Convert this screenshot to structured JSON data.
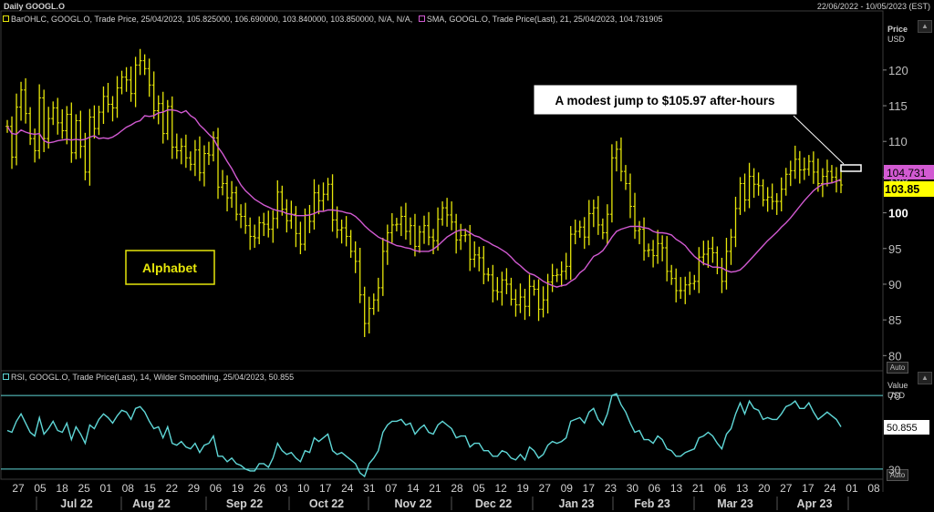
{
  "window": {
    "title": "Daily GOOGL.O",
    "date_range": "22/06/2022 - 10/05/2023 (EST)"
  },
  "price_pane": {
    "legend_ohlc": "BarOHLC, GOOGL.O, Trade Price, 25/04/2023, 105.825000, 106.690000, 103.840000, 103.850000, N/A, N/A,",
    "legend_sma": "SMA, GOOGL.O, Trade Price(Last),  21, 25/04/2023, 104.731905",
    "axis_label": "Price",
    "axis_unit": "USD",
    "auto_label": "Auto",
    "sma_tag": "104.731",
    "last_price_tag": "103.85",
    "annotation": "A modest jump to $105.97 after-hours",
    "company_label": "Alphabet"
  },
  "rsi_pane": {
    "legend": "RSI, GOOGL.O, Trade Price(Last),  14, Wilder Smoothing, 25/04/2023, 50.855",
    "axis_label": "Value",
    "axis_unit": "USD",
    "auto_label": "Auto",
    "value_tag": "50.855"
  },
  "colors": {
    "background": "#000000",
    "bars": "#e6e60a",
    "sma": "#d25ad2",
    "rsi": "#5fd7d7",
    "grid": "#2a2a2a"
  },
  "chart_data": [
    {
      "type": "line",
      "title": "Daily GOOGL.O",
      "ylabel": "Price",
      "yunit": "USD",
      "ylim": [
        78,
        127
      ],
      "ytick_labels": [
        80,
        85,
        90,
        95,
        100,
        105,
        110,
        115,
        120
      ],
      "x_day_ticks": [
        "27",
        "05",
        "18",
        "25",
        "01",
        "08",
        "15",
        "22",
        "29",
        "06",
        "19",
        "26",
        "03",
        "10",
        "17",
        "24",
        "31",
        "07",
        "14",
        "21",
        "28",
        "05",
        "12",
        "19",
        "27",
        "09",
        "17",
        "23",
        "30",
        "06",
        "13",
        "21",
        "06",
        "13",
        "20",
        "27",
        "17",
        "24",
        "01",
        "08"
      ],
      "x_month_labels": [
        "Jul 22",
        "Aug 22",
        "Sep 22",
        "Oct 22",
        "Nov 22",
        "Dec 22",
        "Jan 23",
        "Feb 23",
        "Mar 23",
        "Apr 23"
      ],
      "grid": false,
      "series": [
        {
          "name": "BarOHLC",
          "style": "ohlc",
          "close": [
            112.1,
            107.8,
            114.8,
            117.2,
            113.9,
            110.4,
            108.7,
            116.1,
            110.4,
            113.2,
            114.7,
            112.6,
            111.5,
            113.8,
            108.4,
            112.9,
            109.3,
            105.7,
            113.4,
            111.8,
            114.1,
            116.3,
            115.2,
            114.7,
            117.5,
            119.0,
            118.6,
            116.7,
            120.7,
            121.3,
            120.2,
            117.9,
            114.3,
            115.3,
            111.1,
            114.9,
            109.2,
            108.7,
            109.3,
            107.7,
            106.8,
            108.8,
            105.6,
            108.3,
            108.1,
            110.5,
            103.6,
            104.1,
            102.1,
            102.8,
            99.8,
            99.5,
            98.2,
            96.7,
            96.5,
            98.6,
            98.4,
            97.7,
            99.2,
            102.9,
            100.5,
            98.9,
            99.8,
            97.1,
            95.6,
            99.7,
            98.8,
            102.8,
            101.7,
            102.6,
            104.0,
            99.0,
            97.6,
            97.9,
            96.7,
            94.6,
            93.2,
            88.5,
            84.5,
            86.6,
            87.8,
            89.5,
            94.6,
            97.2,
            98.3,
            98.4,
            99.5,
            97.4,
            98.2,
            95.3,
            97.3,
            98.2,
            96.6,
            96.1,
            99.1,
            100.7,
            99.7,
            98.7,
            96.2,
            96.8,
            96.9,
            93.5,
            94.1,
            93.7,
            91.4,
            91.3,
            89.1,
            88.9,
            90.6,
            90.0,
            87.9,
            87.1,
            88.2,
            86.9,
            89.7,
            89.3,
            86.5,
            87.8,
            90.3,
            91.2,
            91.3,
            91.8,
            92.5,
            97.0,
            97.4,
            98.0,
            96.6,
            99.9,
            100.7,
            98.3,
            97.2,
            99.8,
            107.7,
            108.9,
            105.8,
            104.1,
            100.9,
            97.5,
            97.7,
            94.7,
            94.8,
            94.0,
            95.7,
            95.1,
            91.8,
            90.8,
            89.1,
            89.1,
            89.9,
            90.1,
            90.4,
            93.8,
            94.2,
            95.0,
            94.4,
            92.3,
            90.4,
            94.6,
            96.6,
            100.6,
            104.1,
            101.8,
            105.1,
            104.0,
            103.8,
            101.8,
            102.2,
            101.6,
            101.6,
            103.3,
            105.4,
            105.9,
            107.5,
            106.0,
            106.1,
            107.2,
            105.7,
            104.1,
            105.1,
            105.8,
            105.0,
            104.5,
            103.9
          ]
        },
        {
          "name": "SMA",
          "values": [
            112.1,
            111.1,
            111.0,
            111.6,
            111.3,
            111.1,
            111.0,
            111.1,
            110.1,
            109.8,
            109.9,
            110.1,
            110.2,
            110.3,
            110.2,
            110.3,
            110.2,
            110.3,
            110.6,
            110.8,
            110.4,
            110.5,
            110.4,
            110.6,
            111.0,
            111.5,
            112.0,
            112.3,
            112.7,
            112.9,
            113.6,
            113.5,
            113.6,
            114.0,
            114.1,
            114.4,
            114.4,
            114.3,
            114.0,
            114.3,
            113.6,
            113.2,
            112.3,
            111.7,
            111.0,
            110.4,
            109.2,
            108.3,
            107.2,
            106.2,
            105.0,
            103.9,
            103.1,
            102.5,
            101.9,
            101.5,
            101.1,
            100.8,
            100.5,
            100.3,
            100.2,
            99.9,
            99.8,
            99.6,
            99.6,
            99.6,
            99.7,
            99.9,
            100.2,
            100.2,
            100.4,
            100.4,
            100.3,
            100.2,
            100.0,
            99.9,
            99.5,
            98.9,
            98.2,
            97.6,
            97.1,
            96.6,
            96.3,
            96.0,
            95.7,
            95.4,
            95.3,
            95.1,
            95.0,
            94.7,
            94.6,
            94.6,
            94.6,
            94.9,
            95.4,
            96.0,
            96.6,
            97.0,
            97.4,
            97.6,
            97.6,
            97.2,
            96.8,
            96.6,
            96.2,
            95.9,
            95.5,
            95.2,
            94.8,
            94.4,
            93.8,
            93.1,
            92.6,
            92.0,
            91.5,
            91.3,
            90.9,
            90.4,
            90.1,
            89.8,
            89.6,
            89.8,
            89.9,
            90.4,
            90.8,
            91.6,
            92.1,
            93.0,
            93.9,
            94.2,
            94.7,
            95.6,
            96.6,
            97.4,
            97.7,
            97.9,
            98.1,
            98.1,
            98.1,
            97.9,
            97.8,
            97.4,
            97.2,
            97.2,
            97.1,
            96.9,
            96.3,
            95.9,
            95.4,
            94.6,
            93.9,
            93.4,
            92.9,
            92.7,
            92.4,
            92.4,
            92.3,
            91.9,
            91.7,
            91.8,
            92.0,
            92.6,
            93.3,
            94.0,
            94.7,
            95.4,
            96.1,
            96.7,
            97.3,
            98.0,
            98.6,
            99.3,
            100.1,
            100.9,
            101.7,
            102.4,
            103.1,
            103.6,
            104.0,
            104.1,
            104.2,
            104.4,
            104.7
          ]
        }
      ]
    },
    {
      "type": "line",
      "title": "RSI",
      "ylabel": "Value",
      "yunit": "USD",
      "ylim": [
        26,
        77
      ],
      "ytick_labels": [
        30,
        70
      ],
      "reference_lines": [
        30,
        70
      ],
      "series": [
        {
          "name": "RSI",
          "values": [
            51,
            50,
            56,
            60,
            55,
            50,
            48,
            58,
            49,
            52,
            56,
            51,
            50,
            55,
            46,
            53,
            49,
            44,
            54,
            52,
            57,
            60,
            58,
            55,
            59,
            62,
            61,
            57,
            63,
            64,
            61,
            56,
            52,
            53,
            47,
            53,
            44,
            43,
            45,
            42,
            41,
            44,
            39,
            43,
            44,
            48,
            37,
            37,
            34,
            36,
            33,
            32,
            30,
            29,
            29,
            33,
            33,
            31,
            36,
            44,
            40,
            38,
            39,
            36,
            34,
            40,
            39,
            47,
            45,
            47,
            49,
            40,
            38,
            39,
            37,
            35,
            33,
            28,
            26,
            33,
            36,
            40,
            50,
            54,
            56,
            56,
            57,
            54,
            55,
            49,
            52,
            54,
            50,
            49,
            54,
            56,
            54,
            52,
            47,
            48,
            48,
            42,
            44,
            44,
            40,
            40,
            37,
            37,
            40,
            39,
            36,
            35,
            38,
            35,
            42,
            40,
            36,
            38,
            43,
            45,
            44,
            45,
            47,
            56,
            57,
            58,
            55,
            61,
            63,
            57,
            54,
            60,
            70,
            71,
            65,
            61,
            55,
            50,
            51,
            46,
            46,
            44,
            48,
            46,
            41,
            40,
            37,
            37,
            39,
            40,
            41,
            47,
            48,
            50,
            48,
            44,
            41,
            49,
            52,
            60,
            66,
            60,
            67,
            63,
            62,
            57,
            58,
            57,
            57,
            60,
            64,
            65,
            67,
            63,
            63,
            66,
            61,
            57,
            59,
            61,
            59,
            57,
            53
          ]
        }
      ]
    }
  ]
}
